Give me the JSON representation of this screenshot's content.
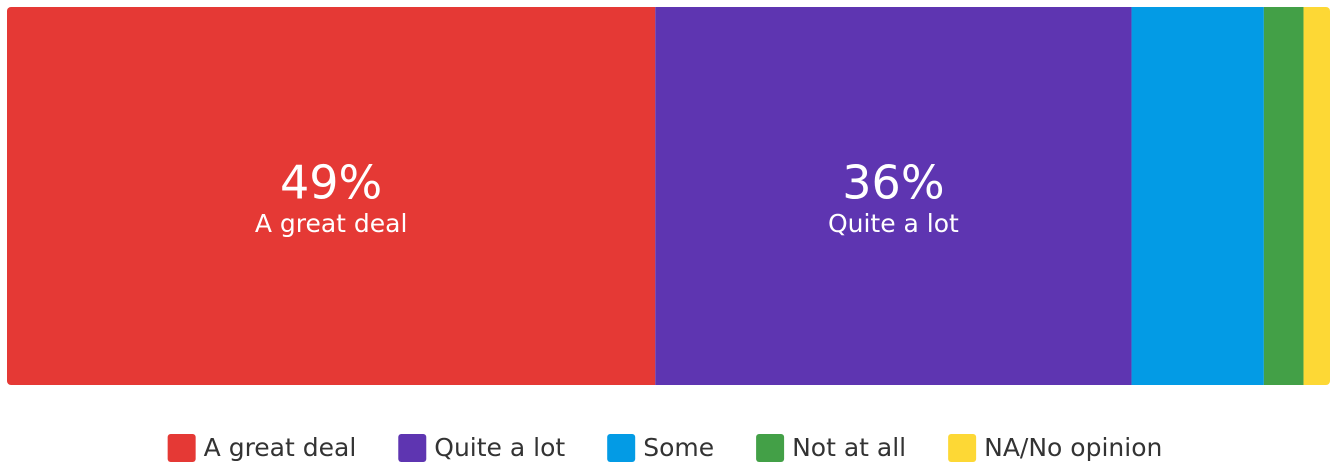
{
  "chart_data": {
    "type": "bar",
    "orientation": "horizontal",
    "stacked": true,
    "xlim": [
      0,
      100
    ],
    "series": [
      {
        "name": "A great deal",
        "color": "#e53935",
        "values": [
          49
        ],
        "value_labels": [
          "49%"
        ]
      },
      {
        "name": "Quite a lot",
        "color": "#5e35b1",
        "values": [
          36
        ],
        "value_labels": [
          "36%"
        ]
      },
      {
        "name": "Some",
        "color": "#039be5",
        "values": [
          10
        ]
      },
      {
        "name": "Not at all",
        "color": "#43a047",
        "values": [
          3
        ]
      },
      {
        "name": "NA/No opinion",
        "color": "#fdd835",
        "values": [
          2
        ]
      }
    ]
  }
}
